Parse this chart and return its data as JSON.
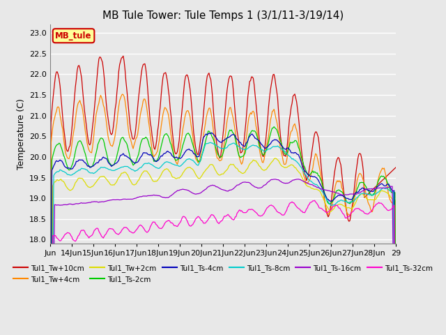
{
  "title": "MB Tule Tower: Tule Temps 1 (3/1/11-3/19/14)",
  "ylabel": "Temperature (C)",
  "ylim": [
    17.9,
    23.2
  ],
  "yticks": [
    18.0,
    18.5,
    19.0,
    19.5,
    20.0,
    20.5,
    21.0,
    21.5,
    22.0,
    22.5,
    23.0
  ],
  "xlabel_ticks": [
    "Jun",
    "14Jun",
    "15Jun",
    "16Jun",
    "17Jun",
    "18Jun",
    "19Jun",
    "20Jun",
    "21Jun",
    "22Jun",
    "23Jun",
    "24Jun",
    "25Jun",
    "26Jun",
    "27Jun",
    "28Jun",
    "29"
  ],
  "bg_color": "#e8e8e8",
  "series": [
    {
      "label": "Tul1_Tw+10cm",
      "color": "#cc0000"
    },
    {
      "label": "Tul1_Tw+4cm",
      "color": "#ff8800"
    },
    {
      "label": "Tul1_Tw+2cm",
      "color": "#dddd00"
    },
    {
      "label": "Tul1_Ts-2cm",
      "color": "#00cc00"
    },
    {
      "label": "Tul1_Ts-4cm",
      "color": "#0000bb"
    },
    {
      "label": "Tul1_Ts-8cm",
      "color": "#00cccc"
    },
    {
      "label": "Tul1_Ts-16cm",
      "color": "#9900cc"
    },
    {
      "label": "Tul1_Ts-32cm",
      "color": "#ff00cc"
    }
  ],
  "legend_box": {
    "text": "MB_tule",
    "facecolor": "#ffff99",
    "edgecolor": "#cc0000",
    "textcolor": "#cc0000"
  }
}
